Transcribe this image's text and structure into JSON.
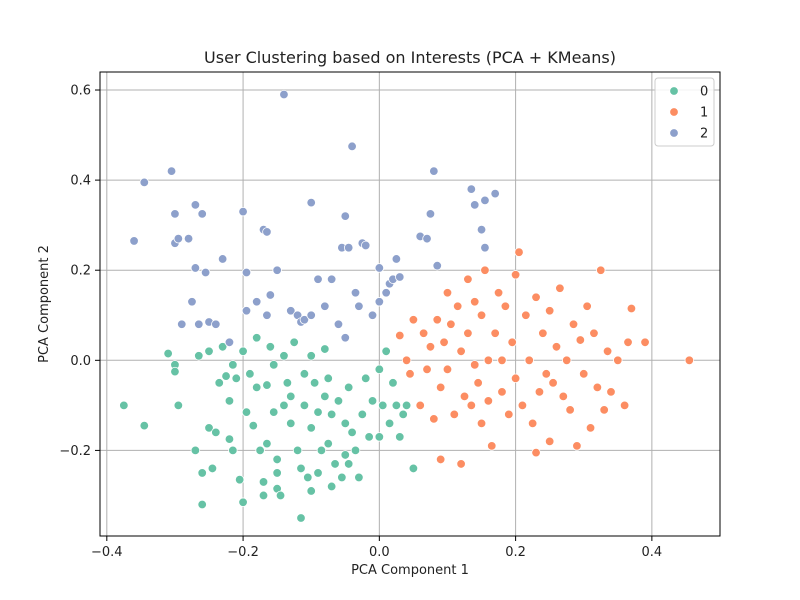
{
  "chart_data": {
    "type": "scatter",
    "title": "User Clustering based on Interests (PCA + KMeans)",
    "xlabel": "PCA Component 1",
    "ylabel": "PCA Component 2",
    "xlim": [
      -0.41,
      0.5
    ],
    "ylim": [
      -0.39,
      0.64
    ],
    "xticks": [
      -0.4,
      -0.2,
      0.0,
      0.2,
      0.4
    ],
    "xtick_labels": [
      "−0.4",
      "−0.2",
      "0.0",
      "0.2",
      "0.4"
    ],
    "yticks": [
      -0.2,
      0.0,
      0.2,
      0.4,
      0.6
    ],
    "ytick_labels": [
      "−0.2",
      "0.0",
      "0.2",
      "0.4",
      "0.6"
    ],
    "grid": true,
    "legend_position": "top-right",
    "colors": {
      "0": "#66c2a5",
      "1": "#fc8d62",
      "2": "#8da0cb"
    },
    "series": [
      {
        "name": "0",
        "color": "#66c2a5",
        "points": [
          [
            -0.375,
            -0.1
          ],
          [
            -0.345,
            -0.145
          ],
          [
            -0.31,
            0.015
          ],
          [
            -0.3,
            -0.01
          ],
          [
            -0.3,
            -0.025
          ],
          [
            -0.295,
            -0.1
          ],
          [
            -0.27,
            -0.2
          ],
          [
            -0.265,
            0.01
          ],
          [
            -0.26,
            -0.25
          ],
          [
            -0.26,
            -0.32
          ],
          [
            -0.25,
            -0.15
          ],
          [
            -0.25,
            0.02
          ],
          [
            -0.245,
            -0.24
          ],
          [
            -0.24,
            -0.16
          ],
          [
            -0.235,
            -0.05
          ],
          [
            -0.23,
            0.03
          ],
          [
            -0.225,
            -0.035
          ],
          [
            -0.22,
            -0.09
          ],
          [
            -0.22,
            -0.175
          ],
          [
            -0.215,
            -0.2
          ],
          [
            -0.215,
            -0.01
          ],
          [
            -0.21,
            -0.04
          ],
          [
            -0.205,
            -0.265
          ],
          [
            -0.2,
            -0.315
          ],
          [
            -0.2,
            0.02
          ],
          [
            -0.195,
            -0.115
          ],
          [
            -0.19,
            -0.03
          ],
          [
            -0.185,
            -0.145
          ],
          [
            -0.18,
            -0.06
          ],
          [
            -0.18,
            0.05
          ],
          [
            -0.175,
            -0.2
          ],
          [
            -0.17,
            -0.27
          ],
          [
            -0.17,
            -0.3
          ],
          [
            -0.165,
            -0.185
          ],
          [
            -0.165,
            -0.055
          ],
          [
            -0.16,
            0.03
          ],
          [
            -0.155,
            -0.115
          ],
          [
            -0.155,
            -0.01
          ],
          [
            -0.15,
            -0.22
          ],
          [
            -0.15,
            -0.25
          ],
          [
            -0.15,
            -0.285
          ],
          [
            -0.145,
            -0.3
          ],
          [
            -0.14,
            -0.1
          ],
          [
            -0.14,
            0.01
          ],
          [
            -0.135,
            -0.05
          ],
          [
            -0.13,
            -0.08
          ],
          [
            -0.13,
            -0.14
          ],
          [
            -0.125,
            0.04
          ],
          [
            -0.12,
            -0.2
          ],
          [
            -0.115,
            -0.24
          ],
          [
            -0.115,
            -0.35
          ],
          [
            -0.11,
            -0.1
          ],
          [
            -0.11,
            -0.03
          ],
          [
            -0.105,
            -0.26
          ],
          [
            -0.1,
            0.01
          ],
          [
            -0.1,
            -0.15
          ],
          [
            -0.1,
            -0.29
          ],
          [
            -0.095,
            -0.05
          ],
          [
            -0.09,
            -0.115
          ],
          [
            -0.09,
            -0.25
          ],
          [
            -0.085,
            -0.2
          ],
          [
            -0.08,
            -0.08
          ],
          [
            -0.08,
            0.025
          ],
          [
            -0.075,
            -0.04
          ],
          [
            -0.075,
            -0.185
          ],
          [
            -0.07,
            -0.28
          ],
          [
            -0.07,
            -0.12
          ],
          [
            -0.065,
            -0.23
          ],
          [
            -0.06,
            -0.09
          ],
          [
            -0.055,
            -0.26
          ],
          [
            -0.05,
            -0.14
          ],
          [
            -0.05,
            -0.21
          ],
          [
            -0.045,
            -0.06
          ],
          [
            -0.045,
            -0.23
          ],
          [
            -0.04,
            -0.16
          ],
          [
            -0.035,
            -0.2
          ],
          [
            -0.03,
            -0.26
          ],
          [
            -0.025,
            -0.12
          ],
          [
            -0.02,
            -0.04
          ],
          [
            -0.015,
            -0.17
          ],
          [
            -0.01,
            -0.09
          ],
          [
            0.0,
            -0.02
          ],
          [
            0.0,
            -0.17
          ],
          [
            0.005,
            -0.1
          ],
          [
            0.01,
            0.02
          ],
          [
            0.015,
            -0.14
          ],
          [
            0.02,
            -0.05
          ],
          [
            0.025,
            -0.1
          ],
          [
            0.03,
            -0.17
          ],
          [
            0.035,
            -0.12
          ],
          [
            0.04,
            -0.1
          ],
          [
            0.05,
            -0.24
          ]
        ]
      },
      {
        "name": "1",
        "color": "#fc8d62",
        "points": [
          [
            0.03,
            0.055
          ],
          [
            0.04,
            0.0
          ],
          [
            0.045,
            -0.03
          ],
          [
            0.05,
            0.09
          ],
          [
            0.06,
            -0.1
          ],
          [
            0.065,
            0.06
          ],
          [
            0.07,
            -0.02
          ],
          [
            0.075,
            0.03
          ],
          [
            0.08,
            -0.13
          ],
          [
            0.085,
            0.09
          ],
          [
            0.09,
            -0.06
          ],
          [
            0.09,
            -0.22
          ],
          [
            0.095,
            0.04
          ],
          [
            0.1,
            0.15
          ],
          [
            0.1,
            -0.02
          ],
          [
            0.105,
            0.08
          ],
          [
            0.11,
            -0.12
          ],
          [
            0.115,
            0.12
          ],
          [
            0.12,
            0.02
          ],
          [
            0.12,
            -0.23
          ],
          [
            0.125,
            -0.08
          ],
          [
            0.13,
            0.18
          ],
          [
            0.13,
            0.06
          ],
          [
            0.135,
            -0.1
          ],
          [
            0.14,
            0.13
          ],
          [
            0.14,
            -0.01
          ],
          [
            0.145,
            -0.05
          ],
          [
            0.15,
            0.1
          ],
          [
            0.15,
            -0.14
          ],
          [
            0.155,
            0.2
          ],
          [
            0.16,
            0.0
          ],
          [
            0.16,
            -0.09
          ],
          [
            0.165,
            -0.19
          ],
          [
            0.17,
            0.06
          ],
          [
            0.175,
            0.15
          ],
          [
            0.18,
            -0.07
          ],
          [
            0.185,
            0.12
          ],
          [
            0.19,
            -0.12
          ],
          [
            0.195,
            0.04
          ],
          [
            0.2,
            0.19
          ],
          [
            0.2,
            -0.04
          ],
          [
            0.205,
            0.24
          ],
          [
            0.21,
            -0.1
          ],
          [
            0.215,
            0.1
          ],
          [
            0.22,
            0.0
          ],
          [
            0.225,
            -0.14
          ],
          [
            0.23,
            0.14
          ],
          [
            0.235,
            -0.07
          ],
          [
            0.24,
            0.06
          ],
          [
            0.245,
            -0.03
          ],
          [
            0.25,
            0.11
          ],
          [
            0.25,
            -0.18
          ],
          [
            0.255,
            -0.05
          ],
          [
            0.26,
            0.03
          ],
          [
            0.265,
            0.16
          ],
          [
            0.27,
            -0.08
          ],
          [
            0.275,
            0.0
          ],
          [
            0.28,
            -0.11
          ],
          [
            0.285,
            0.08
          ],
          [
            0.29,
            -0.19
          ],
          [
            0.295,
            0.045
          ],
          [
            0.3,
            -0.03
          ],
          [
            0.305,
            0.12
          ],
          [
            0.31,
            -0.15
          ],
          [
            0.315,
            0.06
          ],
          [
            0.32,
            -0.06
          ],
          [
            0.325,
            0.2
          ],
          [
            0.33,
            -0.11
          ],
          [
            0.335,
            0.02
          ],
          [
            0.34,
            -0.07
          ],
          [
            0.35,
            0.0
          ],
          [
            0.36,
            -0.1
          ],
          [
            0.365,
            0.04
          ],
          [
            0.37,
            0.115
          ],
          [
            0.39,
            0.04
          ],
          [
            0.455,
            0.0
          ],
          [
            0.23,
            -0.205
          ],
          [
            0.18,
            0.0
          ]
        ]
      },
      {
        "name": "2",
        "color": "#8da0cb",
        "points": [
          [
            -0.36,
            0.265
          ],
          [
            -0.345,
            0.395
          ],
          [
            -0.305,
            0.42
          ],
          [
            -0.3,
            0.325
          ],
          [
            -0.3,
            0.26
          ],
          [
            -0.295,
            0.27
          ],
          [
            -0.29,
            0.08
          ],
          [
            -0.28,
            0.27
          ],
          [
            -0.275,
            0.13
          ],
          [
            -0.27,
            0.345
          ],
          [
            -0.27,
            0.205
          ],
          [
            -0.265,
            0.08
          ],
          [
            -0.26,
            0.325
          ],
          [
            -0.255,
            0.195
          ],
          [
            -0.25,
            0.085
          ],
          [
            -0.24,
            0.08
          ],
          [
            -0.23,
            0.225
          ],
          [
            -0.22,
            0.04
          ],
          [
            -0.2,
            0.33
          ],
          [
            -0.195,
            0.11
          ],
          [
            -0.195,
            0.195
          ],
          [
            -0.18,
            0.13
          ],
          [
            -0.17,
            0.29
          ],
          [
            -0.165,
            0.285
          ],
          [
            -0.165,
            0.1
          ],
          [
            -0.16,
            0.145
          ],
          [
            -0.15,
            0.2
          ],
          [
            -0.14,
            0.59
          ],
          [
            -0.13,
            0.11
          ],
          [
            -0.12,
            0.1
          ],
          [
            -0.115,
            0.085
          ],
          [
            -0.11,
            0.09
          ],
          [
            -0.1,
            0.35
          ],
          [
            -0.1,
            0.1
          ],
          [
            -0.09,
            0.18
          ],
          [
            -0.08,
            0.12
          ],
          [
            -0.07,
            0.18
          ],
          [
            -0.06,
            0.08
          ],
          [
            -0.055,
            0.25
          ],
          [
            -0.05,
            0.32
          ],
          [
            -0.05,
            0.05
          ],
          [
            -0.045,
            0.25
          ],
          [
            -0.04,
            0.475
          ],
          [
            -0.035,
            0.15
          ],
          [
            -0.03,
            0.12
          ],
          [
            -0.025,
            0.26
          ],
          [
            -0.02,
            0.255
          ],
          [
            -0.01,
            0.1
          ],
          [
            0.0,
            0.205
          ],
          [
            0.0,
            0.13
          ],
          [
            0.01,
            0.15
          ],
          [
            0.015,
            0.17
          ],
          [
            0.02,
            0.18
          ],
          [
            0.025,
            0.225
          ],
          [
            0.03,
            0.185
          ],
          [
            0.06,
            0.275
          ],
          [
            0.07,
            0.27
          ],
          [
            0.075,
            0.325
          ],
          [
            0.08,
            0.42
          ],
          [
            0.085,
            0.21
          ],
          [
            0.135,
            0.38
          ],
          [
            0.14,
            0.345
          ],
          [
            0.15,
            0.29
          ],
          [
            0.155,
            0.355
          ],
          [
            0.17,
            0.37
          ],
          [
            0.155,
            0.25
          ]
        ]
      }
    ]
  }
}
